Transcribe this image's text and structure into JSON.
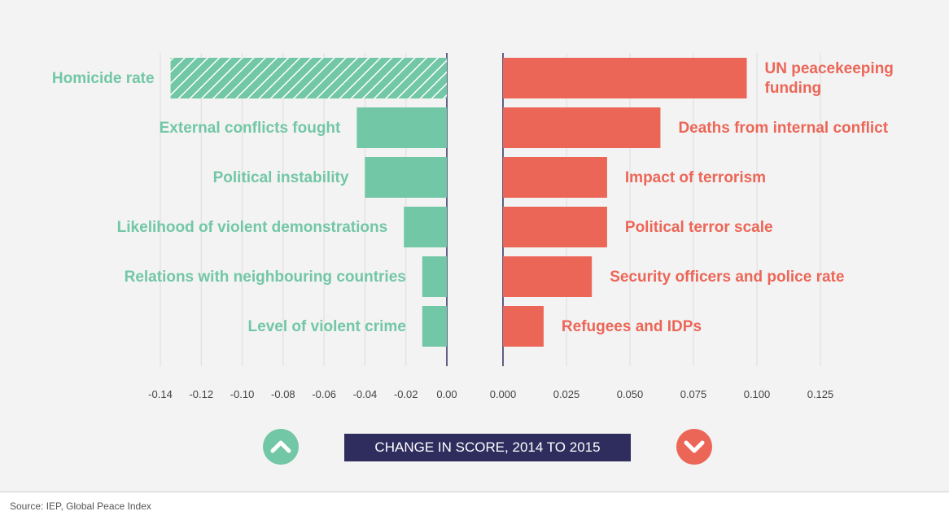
{
  "chart_data": [
    {
      "type": "bar",
      "orientation": "horizontal",
      "categories": [
        "Homicide rate",
        "External conflicts fought",
        "Political instability",
        "Likelihood of violent demonstrations",
        "Relations with neighbouring countries",
        "Level of violent crime"
      ],
      "values": [
        -0.135,
        -0.044,
        -0.04,
        -0.021,
        -0.012,
        -0.012
      ],
      "patterns": [
        "hatched",
        "solid",
        "solid",
        "solid",
        "solid",
        "solid"
      ],
      "color": "#72c7a6",
      "xlim": [
        -0.14,
        0
      ],
      "xticks": [
        -0.14,
        -0.12,
        {
          "value": -0.1,
          "label": "-0.10"
        },
        -0.08,
        -0.06,
        -0.04,
        -0.02,
        {
          "value": 0,
          "label": "0.00"
        }
      ],
      "grid": true
    },
    {
      "type": "bar",
      "orientation": "horizontal",
      "categories": [
        "UN peacekeeping funding",
        "Deaths from internal conflict",
        "Impact of terrorism",
        "Political terror scale",
        "Security officers and police rate",
        "Refugees and IDPs"
      ],
      "values": [
        0.096,
        0.062,
        0.041,
        0.041,
        0.035,
        0.016
      ],
      "patterns": [
        "solid",
        "solid",
        "solid",
        "solid",
        "solid",
        "solid"
      ],
      "color": "#ec6657",
      "xlim": [
        0,
        0.125
      ],
      "xticks": [
        {
          "value": 0,
          "label": "0.000"
        },
        0.025,
        {
          "value": 0.05,
          "label": "0.050"
        },
        0.075,
        {
          "value": 0.1,
          "label": "0.100"
        },
        0.125
      ],
      "grid": true
    }
  ],
  "xlabel": "CHANGE IN SCORE, 2014 TO 2015",
  "source": "Source: IEP, Global Peace Index"
}
